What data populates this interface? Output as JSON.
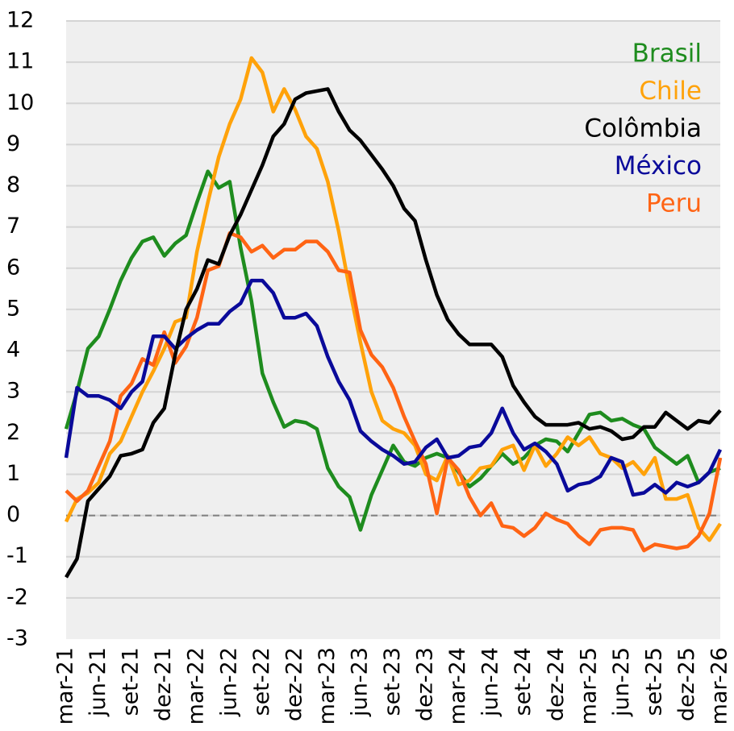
{
  "chart_data": {
    "type": "line",
    "categories": [
      "mar-21",
      null,
      null,
      "jun-21",
      null,
      null,
      "set-21",
      null,
      null,
      "dez-21",
      null,
      null,
      "mar-22",
      null,
      null,
      "jun-22",
      null,
      null,
      "set-22",
      null,
      null,
      "dez-22",
      null,
      null,
      "mar-23",
      null,
      null,
      "jun-23",
      null,
      null,
      "set-23",
      null,
      null,
      "dez-23",
      null,
      null,
      "mar-24",
      null,
      null,
      "jun-24",
      null,
      null,
      "set-24",
      null,
      null,
      "dez-24",
      null,
      null,
      "mar-25",
      null,
      null,
      "jun-25",
      null,
      null,
      "set-25",
      null,
      null,
      "dez-25",
      null,
      null,
      "mar-26"
    ],
    "series": [
      {
        "name": "Brasil",
        "color": "#1e8c1e",
        "values": [
          2.1,
          3.0,
          4.05,
          4.35,
          5.0,
          5.7,
          6.25,
          6.65,
          6.75,
          6.3,
          6.6,
          6.8,
          7.6,
          8.35,
          7.95,
          8.1,
          6.5,
          5.2,
          3.45,
          2.75,
          2.15,
          2.3,
          2.25,
          2.1,
          1.15,
          0.7,
          0.45,
          -0.35,
          0.5,
          1.1,
          1.7,
          1.3,
          1.2,
          1.4,
          1.5,
          1.4,
          1.05,
          0.7,
          0.9,
          1.2,
          1.5,
          1.25,
          1.4,
          1.7,
          1.85,
          1.8,
          1.55,
          2.0,
          2.45,
          2.5,
          2.3,
          2.35,
          2.2,
          2.1,
          1.65,
          1.45,
          1.25,
          1.45,
          0.8,
          1.05,
          1.15
        ]
      },
      {
        "name": "Chile",
        "color": "#ffa20a",
        "values": [
          -0.15,
          0.4,
          0.55,
          0.8,
          1.5,
          1.8,
          2.4,
          3.0,
          3.5,
          4.05,
          4.7,
          4.8,
          6.4,
          7.6,
          8.7,
          9.5,
          10.1,
          11.1,
          10.75,
          9.8,
          10.35,
          9.85,
          9.2,
          8.9,
          8.1,
          6.9,
          5.5,
          4.2,
          3.0,
          2.3,
          2.1,
          2.0,
          1.7,
          1.0,
          0.85,
          1.45,
          0.75,
          0.85,
          1.15,
          1.2,
          1.6,
          1.7,
          1.1,
          1.7,
          1.2,
          1.5,
          1.9,
          1.7,
          1.9,
          1.5,
          1.4,
          1.15,
          1.3,
          1.0,
          1.4,
          0.4,
          0.4,
          0.5,
          -0.3,
          -0.6,
          -0.2
        ]
      },
      {
        "name": "Colômbia",
        "color": "#000000",
        "values": [
          -1.5,
          -1.05,
          0.35,
          0.65,
          0.95,
          1.45,
          1.5,
          1.6,
          2.25,
          2.6,
          3.9,
          5.0,
          5.5,
          6.2,
          6.1,
          6.8,
          7.3,
          7.9,
          8.5,
          9.2,
          9.5,
          10.1,
          10.25,
          10.3,
          10.35,
          9.8,
          9.35,
          9.1,
          8.75,
          8.4,
          8.0,
          7.45,
          7.15,
          6.2,
          5.35,
          4.75,
          4.4,
          4.15,
          4.15,
          4.15,
          3.85,
          3.15,
          2.75,
          2.4,
          2.2,
          2.2,
          2.2,
          2.25,
          2.1,
          2.15,
          2.05,
          1.85,
          1.9,
          2.15,
          2.15,
          2.5,
          2.3,
          2.1,
          2.3,
          2.25,
          2.55
        ]
      },
      {
        "name": "México",
        "color": "#0a0a9a",
        "values": [
          1.4,
          3.1,
          2.9,
          2.9,
          2.8,
          2.6,
          3.0,
          3.25,
          4.35,
          4.35,
          4.05,
          4.3,
          4.5,
          4.65,
          4.65,
          4.95,
          5.15,
          5.7,
          5.7,
          5.4,
          4.8,
          4.8,
          4.9,
          4.6,
          3.85,
          3.25,
          2.8,
          2.05,
          1.8,
          1.6,
          1.45,
          1.25,
          1.3,
          1.65,
          1.85,
          1.4,
          1.45,
          1.65,
          1.7,
          2.0,
          2.6,
          2.0,
          1.6,
          1.75,
          1.55,
          1.25,
          0.6,
          0.75,
          0.8,
          0.95,
          1.4,
          1.3,
          0.5,
          0.55,
          0.75,
          0.55,
          0.8,
          0.7,
          0.8,
          1.05,
          1.6
        ]
      },
      {
        "name": "Peru",
        "color": "#ff6414",
        "values": [
          0.6,
          0.35,
          0.6,
          1.2,
          1.8,
          2.9,
          3.2,
          3.8,
          3.65,
          4.45,
          3.7,
          4.1,
          4.8,
          5.95,
          6.05,
          6.85,
          6.75,
          6.4,
          6.55,
          6.25,
          6.45,
          6.45,
          6.65,
          6.65,
          6.4,
          5.95,
          5.9,
          4.5,
          3.9,
          3.6,
          3.1,
          2.4,
          1.8,
          1.25,
          0.05,
          1.4,
          1.1,
          0.45,
          0.0,
          0.3,
          -0.25,
          -0.3,
          -0.5,
          -0.3,
          0.05,
          -0.1,
          -0.2,
          -0.5,
          -0.7,
          -0.35,
          -0.3,
          -0.3,
          -0.35,
          -0.85,
          -0.7,
          -0.75,
          -0.8,
          -0.75,
          -0.5,
          0.05,
          1.4
        ]
      }
    ],
    "ylim": [
      -3,
      12
    ],
    "yticks": [
      -3,
      -2,
      -1,
      0,
      1,
      2,
      3,
      4,
      5,
      6,
      7,
      8,
      9,
      10,
      11,
      12
    ],
    "grid": true,
    "legend": "top-right"
  }
}
